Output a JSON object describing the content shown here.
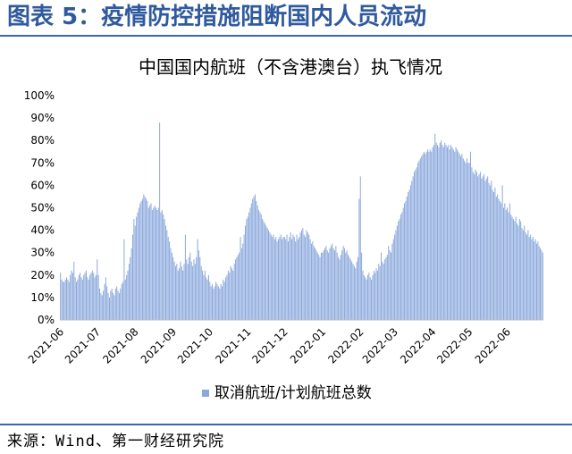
{
  "header": {
    "figure_title": "图表 5：疫情防控措施阻断国内人员流动"
  },
  "footer": {
    "source": "来源：Wind、第一财经研究院"
  },
  "colors": {
    "header_text": "#2f5a9e",
    "rule": "#3a66b0",
    "bar": "#8aa8dc",
    "axis": "#bfbfbf"
  },
  "chart_data": {
    "type": "bar",
    "title": "中国国内航班（不含港澳台）执飞情况",
    "ylim": [
      0,
      100
    ],
    "y_tick_labels": [
      "0%",
      "10%",
      "20%",
      "30%",
      "40%",
      "50%",
      "60%",
      "70%",
      "80%",
      "90%",
      "100%"
    ],
    "x_tick_labels": [
      "2021-06",
      "2021-07",
      "2021-08",
      "2021-09",
      "2021-10",
      "2021-11",
      "2021-12",
      "2022-01",
      "2022-02",
      "2022-03",
      "2022-04",
      "2022-05",
      "2022-06"
    ],
    "grid": false,
    "legend": "bottom",
    "series": [
      {
        "name": "取消航班/计划航班总数",
        "values_by_month": [
          [
            21,
            18,
            17,
            17,
            18,
            19,
            18,
            17,
            20,
            22,
            21,
            26,
            19,
            17,
            18,
            20,
            21,
            19,
            18,
            20,
            21,
            22,
            19,
            18,
            20,
            21,
            22,
            21,
            19,
            20
          ],
          [
            27,
            20,
            14,
            12,
            11,
            13,
            16,
            19,
            15,
            12,
            10,
            13,
            14,
            12,
            11,
            14,
            15,
            13,
            12,
            14,
            16,
            17,
            36,
            18,
            20,
            22,
            25,
            28,
            32,
            38,
            45
          ],
          [
            42,
            46,
            48,
            50,
            52,
            53,
            54,
            56,
            55,
            54,
            53,
            50,
            51,
            52,
            49,
            50,
            51,
            50,
            49,
            50,
            88,
            48,
            49,
            47,
            45,
            42,
            40,
            37,
            35,
            32,
            30
          ],
          [
            28,
            26,
            24,
            25,
            22,
            23,
            26,
            24,
            22,
            25,
            38,
            27,
            25,
            28,
            30,
            26,
            24,
            27,
            25,
            28,
            36,
            31,
            28,
            24,
            22,
            20,
            22,
            19,
            18,
            20
          ],
          [
            17,
            15,
            16,
            14,
            15,
            17,
            16,
            15,
            14,
            16,
            15,
            18,
            17,
            19,
            20,
            22,
            21,
            24,
            23,
            22,
            25,
            27,
            28,
            29,
            30,
            37,
            32,
            34,
            38,
            42,
            45
          ],
          [
            46,
            48,
            50,
            52,
            54,
            55,
            56,
            53,
            51,
            49,
            48,
            47,
            45,
            44,
            43,
            42,
            41,
            40,
            39,
            38,
            37,
            38,
            36,
            37,
            35,
            36,
            37,
            38,
            36,
            37
          ],
          [
            37,
            36,
            38,
            35,
            37,
            39,
            36,
            38,
            37,
            35,
            38,
            36,
            37,
            39,
            40,
            41,
            38,
            37,
            40,
            39,
            38,
            36,
            34,
            35,
            33,
            32,
            31,
            30,
            29,
            28,
            30
          ],
          [
            30,
            31,
            32,
            33,
            31,
            30,
            32,
            33,
            34,
            32,
            31,
            33,
            30,
            28,
            27,
            29,
            31,
            33,
            32,
            30,
            31,
            29,
            28,
            27,
            26,
            25,
            24,
            23,
            26,
            28,
            54
          ],
          [
            64,
            30,
            22,
            20,
            19,
            18,
            20,
            21,
            19,
            18,
            20,
            22,
            21,
            23,
            22,
            25,
            24,
            30,
            26,
            25,
            27,
            28,
            29,
            33,
            31,
            30,
            34,
            36
          ],
          [
            38,
            40,
            42,
            44,
            45,
            47,
            48,
            50,
            52,
            53,
            55,
            57,
            58,
            60,
            62,
            64,
            66,
            67,
            68,
            70,
            71,
            72,
            73,
            74,
            75,
            74,
            75,
            76,
            75,
            76,
            75
          ],
          [
            77,
            78,
            83,
            79,
            78,
            77,
            79,
            80,
            78,
            77,
            79,
            78,
            77,
            78,
            76,
            78,
            77,
            76,
            75,
            77,
            76,
            75,
            74,
            73,
            74,
            72,
            71,
            70,
            72,
            70
          ],
          [
            70,
            75,
            68,
            66,
            65,
            67,
            66,
            64,
            65,
            66,
            63,
            64,
            65,
            62,
            63,
            64,
            61,
            60,
            62,
            58,
            57,
            59,
            55,
            56,
            54,
            53,
            52,
            60,
            50,
            52,
            49
          ],
          [
            50,
            48,
            52,
            47,
            46,
            45,
            44,
            46,
            43,
            42,
            45,
            44,
            41,
            40,
            42,
            39,
            38,
            40,
            37,
            38,
            36,
            37,
            35,
            36,
            34,
            35,
            33,
            32,
            31,
            30
          ]
        ]
      }
    ]
  }
}
